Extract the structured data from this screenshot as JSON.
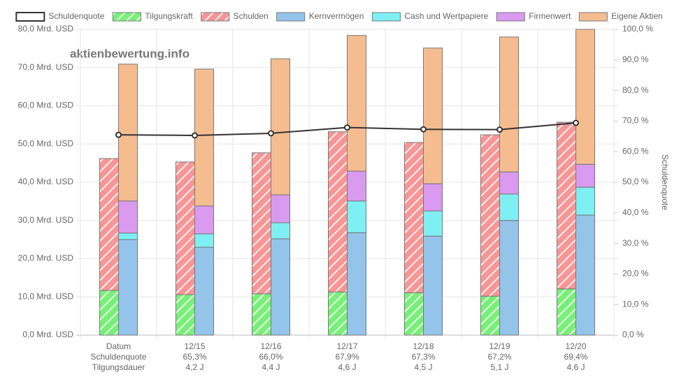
{
  "chart_data": {
    "type": "stacked-bar-line",
    "watermark": "aktienbewertung.info",
    "y2_label": "Schuldenquote",
    "categories": [
      [
        "Datum",
        "Schuldenquote",
        "Tilgungsdauer"
      ],
      [
        "12/15",
        "65,3%",
        "4,2 J"
      ],
      [
        "12/16",
        "66,0%",
        "4,4 J"
      ],
      [
        "12/17",
        "67,9%",
        "4,6 J"
      ],
      [
        "12/18",
        "67,3%",
        "4,5 J"
      ],
      [
        "12/19",
        "67,2%",
        "5,1 J"
      ],
      [
        "12/20",
        "69,4%",
        "4,6 J"
      ]
    ],
    "series": [
      {
        "name": "Schuldenquote",
        "type": "line",
        "axis": "y2",
        "color": "#333333",
        "values": [
          65.5,
          65.3,
          66.0,
          67.9,
          67.3,
          67.2,
          69.4
        ]
      },
      {
        "name": "Tilgungskraft",
        "type": "bar",
        "stack": "debt",
        "hatch": true,
        "color": "#77f077",
        "values": [
          11.7,
          10.6,
          10.8,
          11.3,
          11.1,
          10.2,
          12.1
        ]
      },
      {
        "name": "Schulden",
        "type": "bar",
        "stack": "debt",
        "hatch": true,
        "color": "#f89595",
        "values": [
          34.5,
          34.7,
          36.9,
          41.9,
          39.3,
          42.2,
          43.6
        ]
      },
      {
        "name": "Kernvermögen",
        "type": "bar",
        "stack": "assets",
        "color": "#94c4ea",
        "values": [
          25.0,
          23.0,
          25.2,
          26.8,
          25.9,
          30.0,
          31.4
        ]
      },
      {
        "name": "Cash und Wertpapiere",
        "type": "bar",
        "stack": "assets",
        "color": "#7ef0f4",
        "values": [
          1.7,
          3.5,
          4.2,
          8.3,
          6.6,
          6.9,
          7.3
        ]
      },
      {
        "name": "Firmenwert",
        "type": "bar",
        "stack": "assets",
        "color": "#d99af0",
        "values": [
          8.4,
          7.3,
          7.3,
          7.8,
          7.1,
          5.8,
          6.0
        ]
      },
      {
        "name": "Eigene Aktien",
        "type": "bar",
        "stack": "assets",
        "color": "#f5bd8f",
        "values": [
          35.8,
          35.8,
          35.6,
          35.5,
          35.5,
          35.3,
          35.3
        ]
      }
    ],
    "ylim": [
      0,
      80
    ],
    "yticks": [
      {
        "value": 0,
        "label": "0,0 Mrd. USD"
      },
      {
        "value": 10,
        "label": "10,0 Mrd. USD"
      },
      {
        "value": 20,
        "label": "20,0 Mrd. USD"
      },
      {
        "value": 30,
        "label": "30,0 Mrd. USD"
      },
      {
        "value": 40,
        "label": "40,0 Mrd. USD"
      },
      {
        "value": 50,
        "label": "50,0 Mrd. USD"
      },
      {
        "value": 60,
        "label": "60,0 Mrd. USD"
      },
      {
        "value": 70,
        "label": "70,0 Mrd. USD"
      },
      {
        "value": 80,
        "label": "80,0 Mrd. USD"
      }
    ],
    "y2lim": [
      0,
      100
    ],
    "y2ticks": [
      {
        "value": 0,
        "label": "0,0 %"
      },
      {
        "value": 10,
        "label": "10,0 %"
      },
      {
        "value": 20,
        "label": "20,0 %"
      },
      {
        "value": 30,
        "label": "30,0 %"
      },
      {
        "value": 40,
        "label": "40,0 %"
      },
      {
        "value": 50,
        "label": "50,0 %"
      },
      {
        "value": 60,
        "label": "60,0 %"
      },
      {
        "value": 70,
        "label": "70,0 %"
      },
      {
        "value": 80,
        "label": "80,0 %"
      },
      {
        "value": 90,
        "label": "90,0 %"
      },
      {
        "value": 100,
        "label": "100,0 %"
      }
    ],
    "grid": true,
    "legend": "top"
  }
}
